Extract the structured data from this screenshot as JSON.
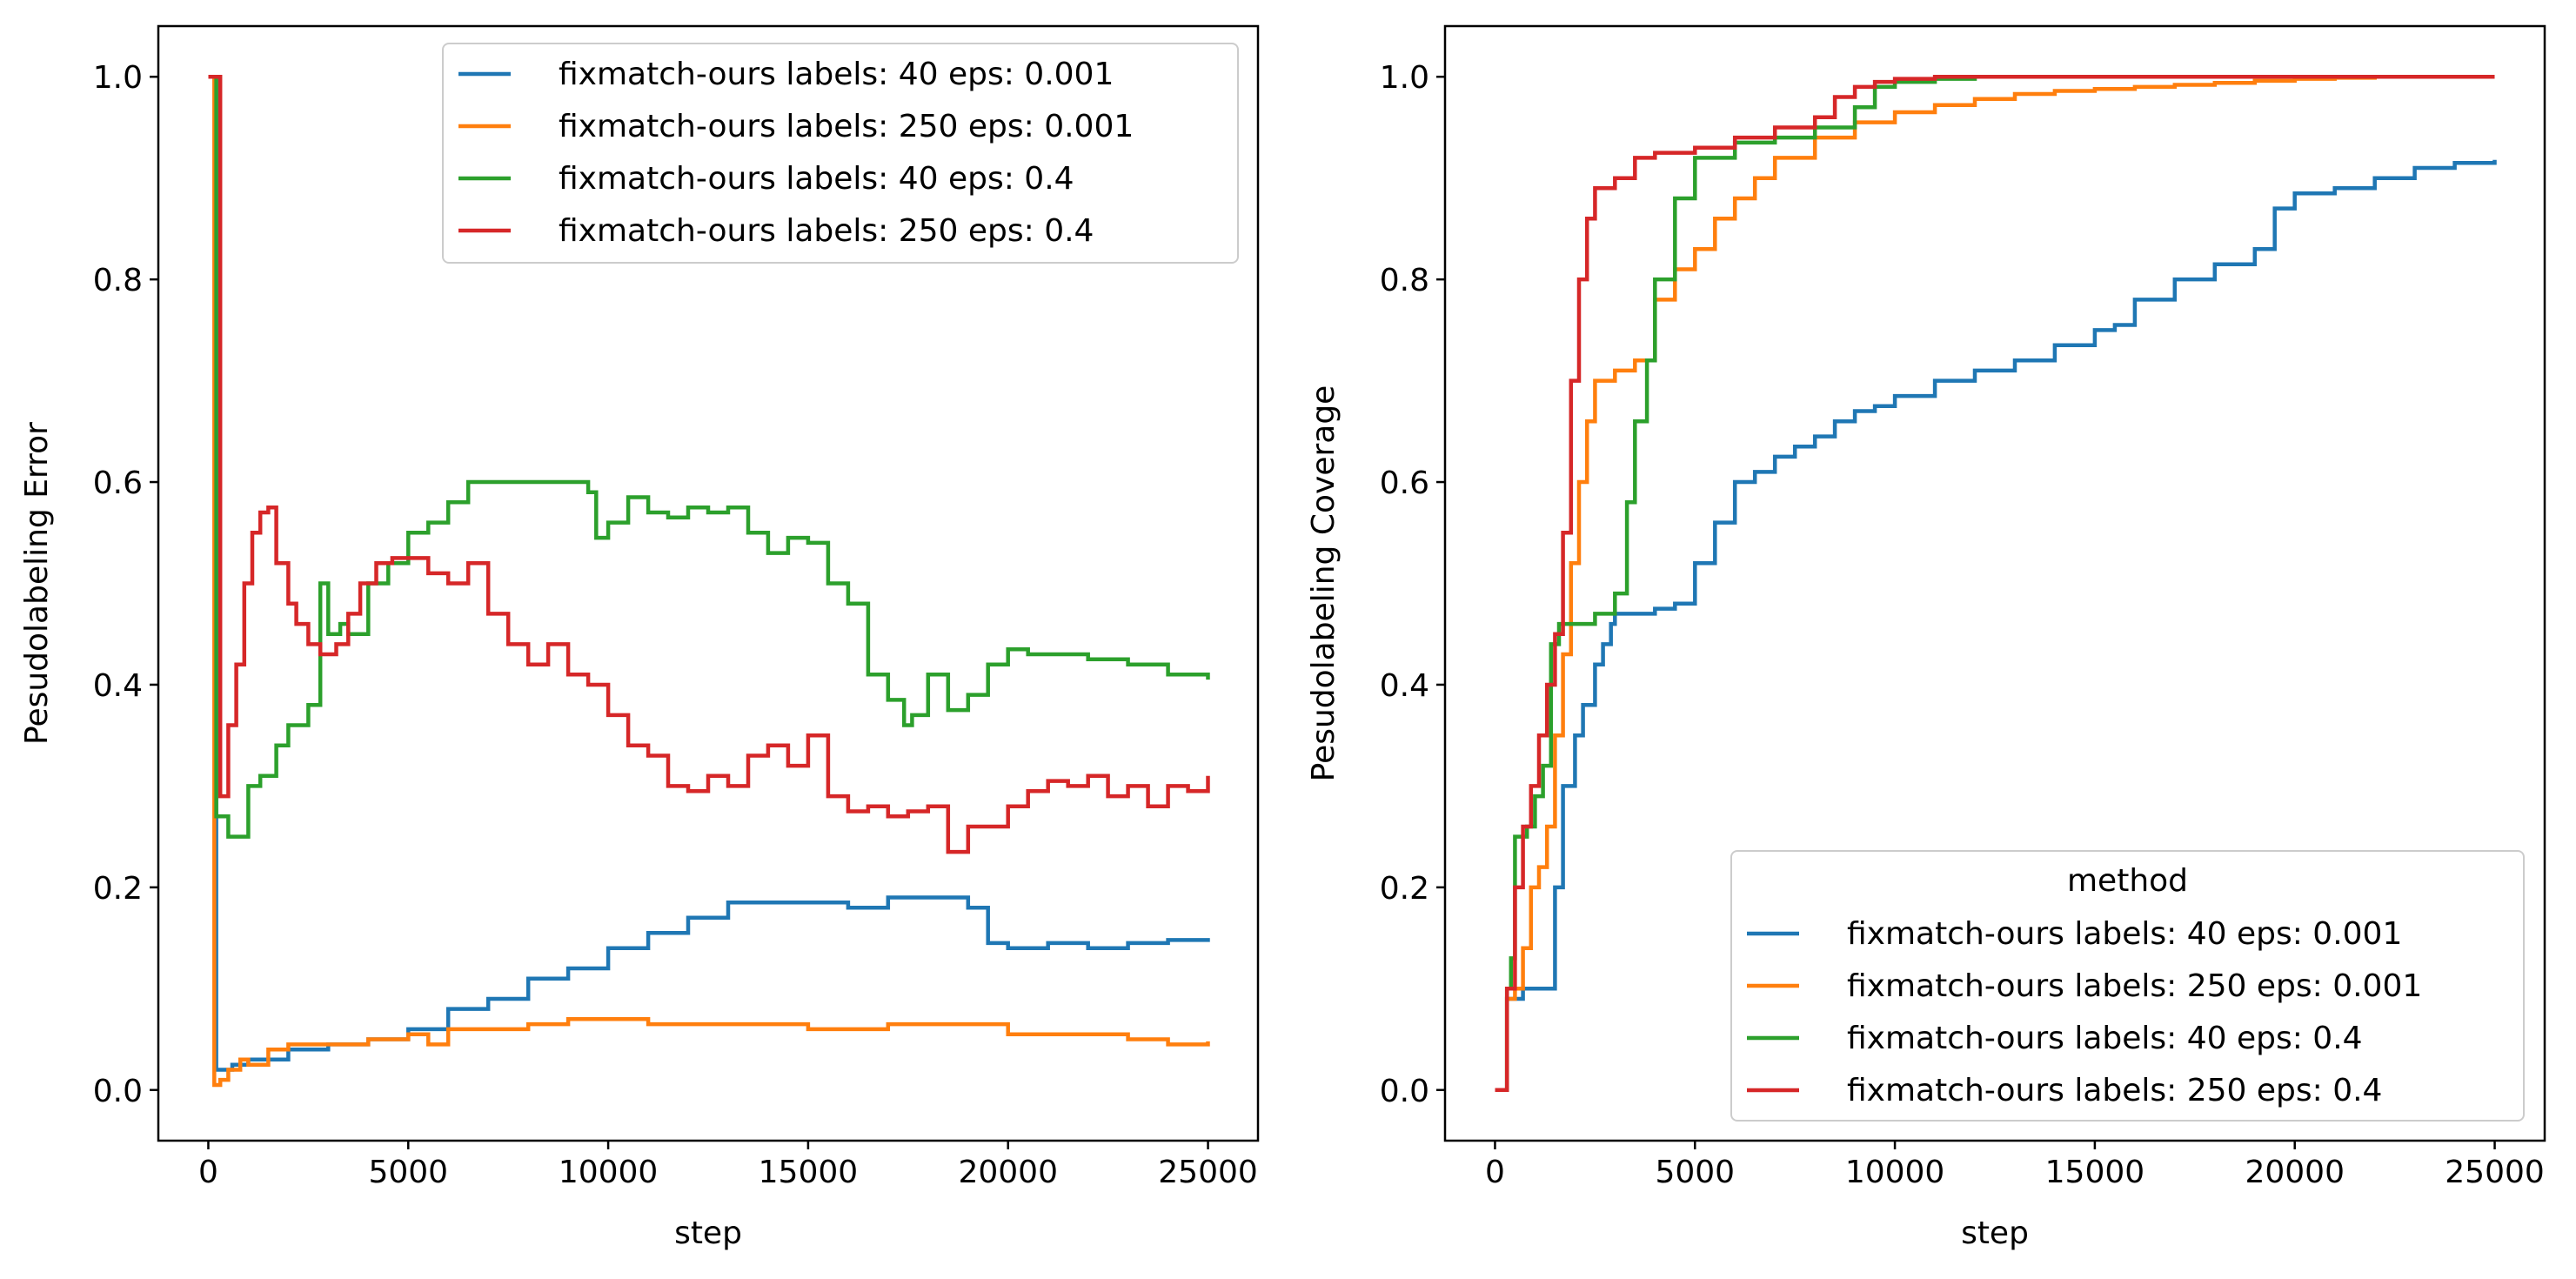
{
  "chart_data": [
    {
      "type": "line",
      "ylabel": "Pesudolabeling Error",
      "xlabel": "step",
      "xlim": [
        -1250,
        26250
      ],
      "ylim": [
        -0.05,
        1.05
      ],
      "xticks": [
        0,
        5000,
        10000,
        15000,
        20000,
        25000
      ],
      "yticks": [
        0.0,
        0.2,
        0.4,
        0.6,
        0.8,
        1.0
      ],
      "xtick_labels": [
        "0",
        "5000",
        "10000",
        "15000",
        "20000",
        "25000"
      ],
      "ytick_labels": [
        "0.0",
        "0.2",
        "0.4",
        "0.6",
        "0.8",
        "1.0"
      ],
      "legend_position": "top-right",
      "legend_title": "",
      "series": [
        {
          "name": "fixmatch-ours labels: 40 eps: 0.001",
          "color": "#1f77b4",
          "x": [
            0,
            150,
            200,
            300,
            600,
            1000,
            1500,
            2000,
            3000,
            4000,
            5000,
            6000,
            7000,
            8000,
            9000,
            10000,
            11000,
            12000,
            13000,
            14000,
            15000,
            16000,
            17000,
            18000,
            19000,
            19500,
            20000,
            21000,
            22000,
            23000,
            24000,
            25000
          ],
          "y": [
            1.0,
            1.0,
            0.02,
            0.02,
            0.025,
            0.03,
            0.03,
            0.04,
            0.045,
            0.05,
            0.06,
            0.08,
            0.09,
            0.11,
            0.12,
            0.14,
            0.155,
            0.17,
            0.185,
            0.185,
            0.185,
            0.18,
            0.19,
            0.19,
            0.18,
            0.145,
            0.14,
            0.145,
            0.14,
            0.145,
            0.148,
            0.15
          ]
        },
        {
          "name": "fixmatch-ours labels: 250 eps: 0.001",
          "color": "#ff7f0e",
          "x": [
            0,
            100,
            150,
            300,
            500,
            800,
            1000,
            1500,
            2000,
            3000,
            4000,
            5000,
            5500,
            6000,
            7000,
            8000,
            9000,
            10000,
            11000,
            12000,
            13000,
            14000,
            15000,
            16000,
            17000,
            18000,
            19000,
            20000,
            21000,
            22000,
            23000,
            24000,
            25000
          ],
          "y": [
            1.0,
            1.0,
            0.005,
            0.01,
            0.02,
            0.03,
            0.025,
            0.04,
            0.045,
            0.045,
            0.05,
            0.055,
            0.045,
            0.06,
            0.06,
            0.065,
            0.07,
            0.07,
            0.065,
            0.065,
            0.065,
            0.065,
            0.06,
            0.06,
            0.065,
            0.065,
            0.065,
            0.055,
            0.055,
            0.055,
            0.05,
            0.045,
            0.048
          ]
        },
        {
          "name": "fixmatch-ours labels: 40 eps: 0.4",
          "color": "#2ca02c",
          "x": [
            0,
            150,
            200,
            400,
            500,
            800,
            1000,
            1300,
            1700,
            2000,
            2500,
            2800,
            3000,
            3300,
            3500,
            4000,
            4500,
            5000,
            5500,
            6000,
            6500,
            7000,
            7500,
            8000,
            8500,
            9000,
            9500,
            9700,
            10000,
            10500,
            11000,
            11500,
            12000,
            12500,
            13000,
            13500,
            14000,
            14500,
            15000,
            15500,
            16000,
            16500,
            17000,
            17400,
            17600,
            18000,
            18500,
            19000,
            19500,
            20000,
            20500,
            21000,
            22000,
            23000,
            24000,
            25000
          ],
          "y": [
            1.0,
            1.0,
            0.27,
            0.27,
            0.25,
            0.25,
            0.3,
            0.31,
            0.34,
            0.36,
            0.38,
            0.5,
            0.45,
            0.46,
            0.45,
            0.5,
            0.52,
            0.55,
            0.56,
            0.58,
            0.6,
            0.6,
            0.6,
            0.6,
            0.6,
            0.6,
            0.59,
            0.545,
            0.56,
            0.585,
            0.57,
            0.565,
            0.575,
            0.57,
            0.575,
            0.55,
            0.53,
            0.545,
            0.54,
            0.5,
            0.48,
            0.41,
            0.385,
            0.36,
            0.37,
            0.41,
            0.375,
            0.39,
            0.42,
            0.435,
            0.43,
            0.43,
            0.425,
            0.42,
            0.41,
            0.405
          ]
        },
        {
          "name": "fixmatch-ours labels: 250 eps: 0.4",
          "color": "#d62728",
          "x": [
            0,
            200,
            300,
            500,
            700,
            900,
            1100,
            1300,
            1500,
            1700,
            2000,
            2200,
            2500,
            2800,
            3200,
            3500,
            3800,
            4200,
            4600,
            5000,
            5500,
            6000,
            6500,
            7000,
            7500,
            8000,
            8500,
            9000,
            9500,
            10000,
            10500,
            11000,
            11500,
            12000,
            12500,
            13000,
            13500,
            14000,
            14500,
            15000,
            15500,
            16000,
            16500,
            17000,
            17500,
            18000,
            18500,
            19000,
            19500,
            20000,
            20500,
            21000,
            21500,
            22000,
            22500,
            23000,
            23500,
            24000,
            24500,
            25000
          ],
          "y": [
            1.0,
            1.0,
            0.29,
            0.36,
            0.42,
            0.5,
            0.55,
            0.57,
            0.575,
            0.52,
            0.48,
            0.46,
            0.44,
            0.43,
            0.44,
            0.47,
            0.5,
            0.52,
            0.525,
            0.525,
            0.51,
            0.5,
            0.52,
            0.47,
            0.44,
            0.42,
            0.44,
            0.41,
            0.4,
            0.37,
            0.34,
            0.33,
            0.3,
            0.295,
            0.31,
            0.3,
            0.33,
            0.34,
            0.32,
            0.35,
            0.29,
            0.275,
            0.28,
            0.27,
            0.275,
            0.28,
            0.235,
            0.26,
            0.26,
            0.28,
            0.295,
            0.305,
            0.3,
            0.31,
            0.29,
            0.3,
            0.28,
            0.3,
            0.295,
            0.31
          ]
        }
      ]
    },
    {
      "type": "line",
      "ylabel": "Pesudolabeling Coverage",
      "xlabel": "step",
      "xlim": [
        -1250,
        26250
      ],
      "ylim": [
        -0.05,
        1.05
      ],
      "xticks": [
        0,
        5000,
        10000,
        15000,
        20000,
        25000
      ],
      "yticks": [
        0.0,
        0.2,
        0.4,
        0.6,
        0.8,
        1.0
      ],
      "xtick_labels": [
        "0",
        "5000",
        "10000",
        "15000",
        "20000",
        "25000"
      ],
      "ytick_labels": [
        "0.0",
        "0.2",
        "0.4",
        "0.6",
        "0.8",
        "1.0"
      ],
      "legend_position": "bottom-right",
      "legend_title": "method",
      "series": [
        {
          "name": "fixmatch-ours labels: 40 eps: 0.001",
          "color": "#1f77b4",
          "x": [
            0,
            200,
            300,
            500,
            700,
            1000,
            1300,
            1500,
            1700,
            2000,
            2200,
            2500,
            2700,
            2900,
            3000,
            3500,
            4000,
            4500,
            5000,
            5500,
            6000,
            6500,
            7000,
            7500,
            8000,
            8500,
            9000,
            9500,
            10000,
            11000,
            12000,
            13000,
            14000,
            15000,
            15500,
            16000,
            17000,
            18000,
            19000,
            19500,
            20000,
            21000,
            22000,
            23000,
            24000,
            25000
          ],
          "y": [
            0.0,
            0.0,
            0.09,
            0.09,
            0.1,
            0.1,
            0.1,
            0.2,
            0.3,
            0.35,
            0.38,
            0.42,
            0.44,
            0.46,
            0.47,
            0.47,
            0.475,
            0.48,
            0.52,
            0.56,
            0.6,
            0.61,
            0.625,
            0.635,
            0.645,
            0.66,
            0.67,
            0.675,
            0.685,
            0.7,
            0.71,
            0.72,
            0.735,
            0.75,
            0.755,
            0.78,
            0.8,
            0.815,
            0.83,
            0.87,
            0.885,
            0.89,
            0.9,
            0.91,
            0.915,
            0.918
          ]
        },
        {
          "name": "fixmatch-ours labels: 250 eps: 0.001",
          "color": "#ff7f0e",
          "x": [
            0,
            200,
            300,
            500,
            700,
            900,
            1100,
            1300,
            1500,
            1700,
            1900,
            2100,
            2300,
            2500,
            3000,
            3500,
            4000,
            4500,
            5000,
            5500,
            6000,
            6500,
            7000,
            8000,
            9000,
            10000,
            11000,
            12000,
            13000,
            14000,
            15000,
            16000,
            17000,
            18000,
            19000,
            20000,
            21000,
            22000,
            23000,
            24000,
            25000
          ],
          "y": [
            0.0,
            0.0,
            0.09,
            0.1,
            0.14,
            0.2,
            0.22,
            0.26,
            0.35,
            0.43,
            0.52,
            0.6,
            0.66,
            0.7,
            0.71,
            0.72,
            0.78,
            0.81,
            0.83,
            0.86,
            0.88,
            0.9,
            0.92,
            0.94,
            0.955,
            0.965,
            0.972,
            0.978,
            0.983,
            0.986,
            0.988,
            0.99,
            0.992,
            0.994,
            0.996,
            0.998,
            0.999,
            1.0,
            1.0,
            1.0,
            1.0
          ]
        },
        {
          "name": "fixmatch-ours labels: 40 eps: 0.4",
          "color": "#2ca02c",
          "x": [
            0,
            200,
            300,
            400,
            500,
            800,
            1000,
            1200,
            1400,
            1600,
            2000,
            2500,
            3000,
            3300,
            3500,
            3800,
            4000,
            4500,
            5000,
            6000,
            7000,
            8000,
            9000,
            9500,
            10000,
            11000,
            12000,
            14000,
            16000,
            18000,
            20000,
            22000,
            25000
          ],
          "y": [
            0.0,
            0.0,
            0.1,
            0.13,
            0.25,
            0.26,
            0.29,
            0.32,
            0.44,
            0.46,
            0.46,
            0.47,
            0.49,
            0.58,
            0.66,
            0.72,
            0.8,
            0.88,
            0.92,
            0.935,
            0.94,
            0.95,
            0.97,
            0.99,
            0.995,
            0.998,
            1.0,
            1.0,
            1.0,
            1.0,
            1.0,
            1.0,
            1.0
          ]
        },
        {
          "name": "fixmatch-ours labels: 250 eps: 0.4",
          "color": "#d62728",
          "x": [
            0,
            200,
            300,
            500,
            700,
            900,
            1100,
            1300,
            1500,
            1700,
            1900,
            2100,
            2300,
            2500,
            3000,
            3500,
            4000,
            5000,
            6000,
            7000,
            8000,
            8500,
            9000,
            9500,
            10000,
            11000,
            12000,
            14000,
            16000,
            18000,
            20000,
            22000,
            25000
          ],
          "y": [
            0.0,
            0.0,
            0.1,
            0.2,
            0.26,
            0.3,
            0.35,
            0.4,
            0.45,
            0.55,
            0.7,
            0.8,
            0.86,
            0.89,
            0.9,
            0.92,
            0.925,
            0.93,
            0.94,
            0.95,
            0.96,
            0.98,
            0.99,
            0.995,
            0.998,
            1.0,
            1.0,
            1.0,
            1.0,
            1.0,
            1.0,
            1.0,
            1.0
          ]
        }
      ]
    }
  ]
}
